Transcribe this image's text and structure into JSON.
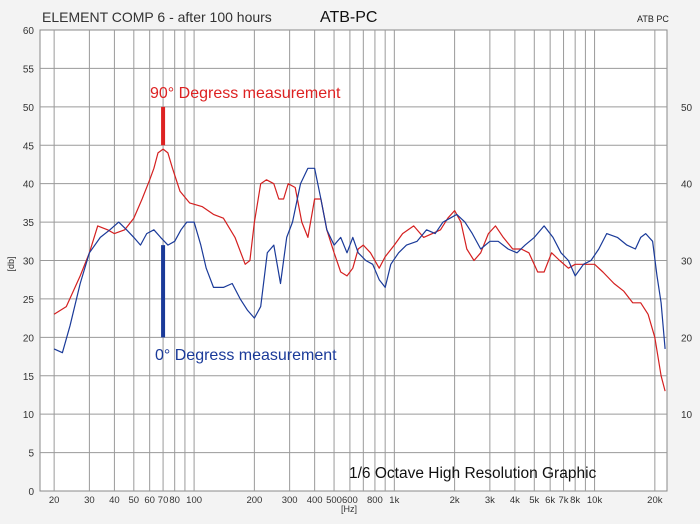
{
  "window": {
    "title": "ELEMENT COMP 6 - after 100 hours",
    "brand": "ATB-PC",
    "brand_corner": "ATB PC"
  },
  "chart_data": {
    "type": "line",
    "title": "ELEMENT COMP 6 - after 100 hours",
    "subtitle": "ATB-PC",
    "caption": "1/6 Octave High Resolution Graphic",
    "xlabel": "[Hz]",
    "ylabel": "[db]",
    "x_scale": "log",
    "xlim": [
      17,
      23000
    ],
    "ylim": [
      0,
      60
    ],
    "grid": true,
    "y_ticks_left": [
      "0",
      "5",
      "10",
      "15",
      "20",
      "25",
      "30",
      "35",
      "40",
      "45",
      "50",
      "55",
      "60"
    ],
    "y_ticks_right": [
      "10",
      "20",
      "30",
      "40",
      "50"
    ],
    "x_tick_labels": [
      {
        "f": 20,
        "t": "20"
      },
      {
        "f": 30,
        "t": "30"
      },
      {
        "f": 40,
        "t": "40"
      },
      {
        "f": 50,
        "t": "50"
      },
      {
        "f": 60,
        "t": "60"
      },
      {
        "f": 70,
        "t": "70"
      },
      {
        "f": 80,
        "t": "80"
      },
      {
        "f": 100,
        "t": "100"
      },
      {
        "f": 200,
        "t": "200"
      },
      {
        "f": 300,
        "t": "300"
      },
      {
        "f": 400,
        "t": "400"
      },
      {
        "f": 500,
        "t": "500"
      },
      {
        "f": 600,
        "t": "600"
      },
      {
        "f": 800,
        "t": "800"
      },
      {
        "f": 1000,
        "t": "1k"
      },
      {
        "f": 2000,
        "t": "2k"
      },
      {
        "f": 3000,
        "t": "3k"
      },
      {
        "f": 4000,
        "t": "4k"
      },
      {
        "f": 5000,
        "t": "5k"
      },
      {
        "f": 6000,
        "t": "6k"
      },
      {
        "f": 7000,
        "t": "7k"
      },
      {
        "f": 8000,
        "t": "8k"
      },
      {
        "f": 10000,
        "t": "10k"
      },
      {
        "f": 20000,
        "t": "20k"
      }
    ],
    "annotations": [
      {
        "text": "90° Degress measurement",
        "color": "#dd2222",
        "marker_y": [
          45,
          50
        ]
      },
      {
        "text": "0° Degress measurement",
        "color": "#1a3a99",
        "marker_y": [
          20,
          32
        ]
      }
    ],
    "series": [
      {
        "color": "#d42020",
        "points": [
          [
            20,
            23
          ],
          [
            23,
            24
          ],
          [
            27,
            28
          ],
          [
            30,
            31
          ],
          [
            33,
            34.5
          ],
          [
            37,
            34
          ],
          [
            40,
            33.5
          ],
          [
            45,
            34
          ],
          [
            50,
            35.5
          ],
          [
            55,
            38
          ],
          [
            60,
            40.5
          ],
          [
            63,
            42
          ],
          [
            66,
            44
          ],
          [
            70,
            44.5
          ],
          [
            74,
            44
          ],
          [
            78,
            42
          ],
          [
            85,
            39
          ],
          [
            95,
            37.5
          ],
          [
            110,
            37
          ],
          [
            125,
            36
          ],
          [
            140,
            35.5
          ],
          [
            160,
            33
          ],
          [
            180,
            29.5
          ],
          [
            190,
            30
          ],
          [
            200,
            35
          ],
          [
            215,
            40
          ],
          [
            230,
            40.5
          ],
          [
            250,
            40
          ],
          [
            265,
            38
          ],
          [
            280,
            38
          ],
          [
            295,
            40
          ],
          [
            320,
            39.5
          ],
          [
            345,
            35
          ],
          [
            370,
            33
          ],
          [
            400,
            38
          ],
          [
            430,
            38
          ],
          [
            460,
            34
          ],
          [
            500,
            31
          ],
          [
            540,
            28.5
          ],
          [
            580,
            28
          ],
          [
            620,
            29
          ],
          [
            660,
            31.5
          ],
          [
            700,
            32
          ],
          [
            760,
            31
          ],
          [
            840,
            29
          ],
          [
            900,
            30.5
          ],
          [
            1000,
            32
          ],
          [
            1100,
            33.5
          ],
          [
            1250,
            34.5
          ],
          [
            1400,
            33
          ],
          [
            1550,
            33.5
          ],
          [
            1700,
            34
          ],
          [
            1850,
            35.5
          ],
          [
            2000,
            36.5
          ],
          [
            2150,
            35
          ],
          [
            2300,
            31.5
          ],
          [
            2500,
            30
          ],
          [
            2700,
            31
          ],
          [
            2950,
            33.5
          ],
          [
            3200,
            34.5
          ],
          [
            3500,
            33
          ],
          [
            3900,
            31.5
          ],
          [
            4300,
            31.5
          ],
          [
            4700,
            31
          ],
          [
            5200,
            28.5
          ],
          [
            5600,
            28.5
          ],
          [
            6100,
            31
          ],
          [
            6700,
            30
          ],
          [
            7400,
            29
          ],
          [
            8000,
            29.5
          ],
          [
            9000,
            29.5
          ],
          [
            10000,
            29.5
          ],
          [
            11000,
            28.5
          ],
          [
            12500,
            27
          ],
          [
            14000,
            26
          ],
          [
            15500,
            24.5
          ],
          [
            17000,
            24.5
          ],
          [
            18500,
            23
          ],
          [
            20000,
            20
          ],
          [
            21500,
            15
          ],
          [
            22500,
            13
          ]
        ]
      },
      {
        "color": "#1a3a99",
        "points": [
          [
            20,
            18.5
          ],
          [
            22,
            18
          ],
          [
            24,
            21.5
          ],
          [
            27,
            27
          ],
          [
            30,
            31
          ],
          [
            34,
            33
          ],
          [
            38,
            34
          ],
          [
            42,
            35
          ],
          [
            46,
            34
          ],
          [
            50,
            33
          ],
          [
            54,
            32
          ],
          [
            58,
            33.5
          ],
          [
            63,
            34
          ],
          [
            68,
            33
          ],
          [
            74,
            32
          ],
          [
            80,
            32.5
          ],
          [
            86,
            34
          ],
          [
            92,
            35
          ],
          [
            100,
            35
          ],
          [
            108,
            32
          ],
          [
            115,
            29
          ],
          [
            125,
            26.5
          ],
          [
            140,
            26.5
          ],
          [
            155,
            27
          ],
          [
            170,
            25
          ],
          [
            185,
            23.5
          ],
          [
            200,
            22.5
          ],
          [
            215,
            24
          ],
          [
            232,
            31
          ],
          [
            250,
            32
          ],
          [
            270,
            27
          ],
          [
            290,
            33
          ],
          [
            310,
            35
          ],
          [
            340,
            40
          ],
          [
            370,
            42
          ],
          [
            400,
            42
          ],
          [
            430,
            38
          ],
          [
            460,
            34
          ],
          [
            500,
            32
          ],
          [
            540,
            33
          ],
          [
            580,
            31
          ],
          [
            620,
            33
          ],
          [
            660,
            31
          ],
          [
            720,
            30
          ],
          [
            780,
            29.5
          ],
          [
            840,
            27.5
          ],
          [
            900,
            26.5
          ],
          [
            960,
            29.5
          ],
          [
            1050,
            31
          ],
          [
            1150,
            32
          ],
          [
            1300,
            32.5
          ],
          [
            1450,
            34
          ],
          [
            1600,
            33.5
          ],
          [
            1750,
            35
          ],
          [
            1900,
            35.5
          ],
          [
            2050,
            36
          ],
          [
            2250,
            35
          ],
          [
            2450,
            33.5
          ],
          [
            2700,
            31.5
          ],
          [
            3000,
            32.5
          ],
          [
            3300,
            32.5
          ],
          [
            3700,
            31.5
          ],
          [
            4100,
            31
          ],
          [
            4500,
            32
          ],
          [
            5000,
            33
          ],
          [
            5600,
            34.5
          ],
          [
            6200,
            33
          ],
          [
            6800,
            31
          ],
          [
            7400,
            30
          ],
          [
            8000,
            28
          ],
          [
            8800,
            29.5
          ],
          [
            9600,
            30
          ],
          [
            10500,
            31.5
          ],
          [
            11500,
            33.5
          ],
          [
            13000,
            33
          ],
          [
            14500,
            32
          ],
          [
            16000,
            31.5
          ],
          [
            17000,
            33
          ],
          [
            18000,
            33.5
          ],
          [
            19500,
            32.5
          ],
          [
            20500,
            28
          ],
          [
            21500,
            24.5
          ],
          [
            22500,
            18.5
          ]
        ]
      }
    ]
  }
}
